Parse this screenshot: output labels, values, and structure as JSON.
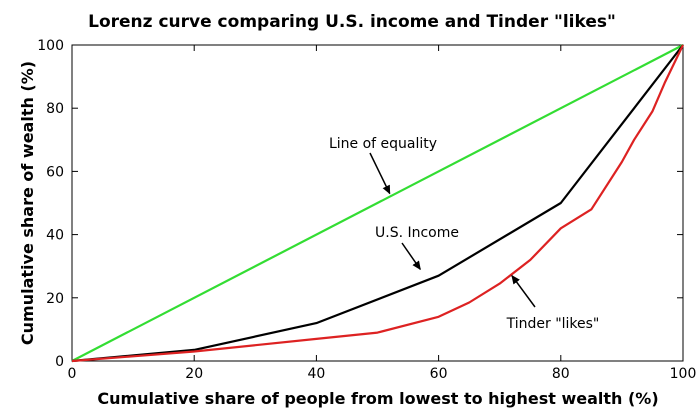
{
  "chart_data": {
    "type": "line",
    "title": "Lorenz curve comparing U.S. income and Tinder \"likes\"",
    "xlabel": "Cumulative share of people from lowest to highest wealth (%)",
    "ylabel": "Cumulative share of wealth (%)",
    "xlim": [
      0,
      100
    ],
    "ylim": [
      0,
      100
    ],
    "xticks": [
      "0",
      "20",
      "40",
      "60",
      "80",
      "100"
    ],
    "yticks": [
      "0",
      "20",
      "40",
      "60",
      "80",
      "100"
    ],
    "grid": false,
    "series": [
      {
        "name": "Line of equality",
        "color": "#33dd33",
        "x": [
          0,
          100
        ],
        "y": [
          0,
          100
        ]
      },
      {
        "name": "U.S. Income",
        "color": "#000000",
        "x": [
          0,
          20,
          40,
          60,
          80,
          100
        ],
        "y": [
          0,
          3.5,
          12,
          27,
          50,
          100
        ]
      },
      {
        "name": "Tinder \"likes\"",
        "color": "#dd2222",
        "x": [
          0,
          10,
          20,
          30,
          40,
          50,
          60,
          65,
          70,
          75,
          80,
          85,
          90,
          92,
          95,
          97,
          100
        ],
        "y": [
          0,
          1.5,
          3,
          5,
          7,
          9,
          14,
          18.5,
          24.5,
          32,
          42,
          48,
          63,
          70,
          79,
          88,
          100
        ]
      }
    ],
    "annotations": [
      {
        "text": "Line of equality",
        "points_to": [
          52,
          53
        ]
      },
      {
        "text": "U.S. Income",
        "points_to": [
          57,
          29
        ]
      },
      {
        "text": "Tinder \"likes\"",
        "points_to": [
          72,
          27
        ]
      }
    ]
  }
}
